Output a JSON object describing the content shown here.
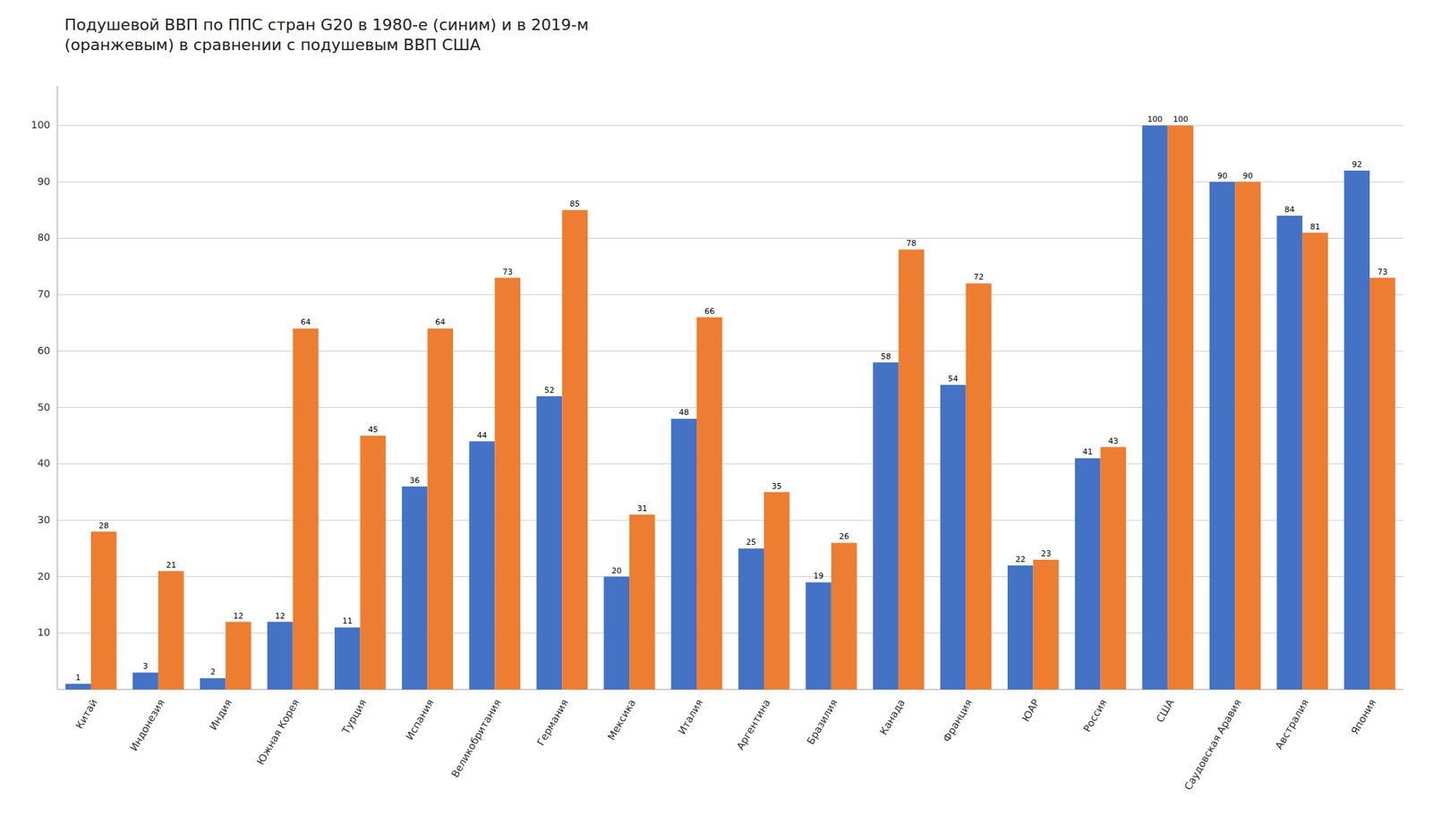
{
  "chart_data": {
    "type": "bar",
    "title": "Подушевой ВВП по ППС стран G20 в 1980-е (синим) и в 2019-м\n(оранжевым) в сравнении с подушевым ВВП США",
    "categories": [
      "Китай",
      "Индонезия",
      "Индия",
      "Южная Корея",
      "Турция",
      "Испания",
      "Великобритания",
      "Германия",
      "Мексика",
      "Италия",
      "Аргентина",
      "Бразилия",
      "Канада",
      "Франция",
      "ЮАР",
      "Россия",
      "США",
      "Саудовская Аравия",
      "Австралия",
      "Япония"
    ],
    "series": [
      {
        "color": "#4472C4",
        "values": [
          1,
          3,
          2,
          12,
          11,
          36,
          44,
          52,
          20,
          48,
          25,
          19,
          58,
          54,
          22,
          41,
          100,
          90,
          84,
          92
        ]
      },
      {
        "color": "#ED7D31",
        "values": [
          28,
          21,
          12,
          64,
          45,
          64,
          73,
          85,
          31,
          66,
          35,
          26,
          78,
          72,
          23,
          43,
          100,
          90,
          81,
          73
        ]
      }
    ],
    "ylim": [
      0,
      107
    ],
    "yticks": [
      10,
      20,
      30,
      40,
      50,
      60,
      70,
      80,
      90,
      100
    ],
    "grid": true,
    "data_labels": true
  }
}
